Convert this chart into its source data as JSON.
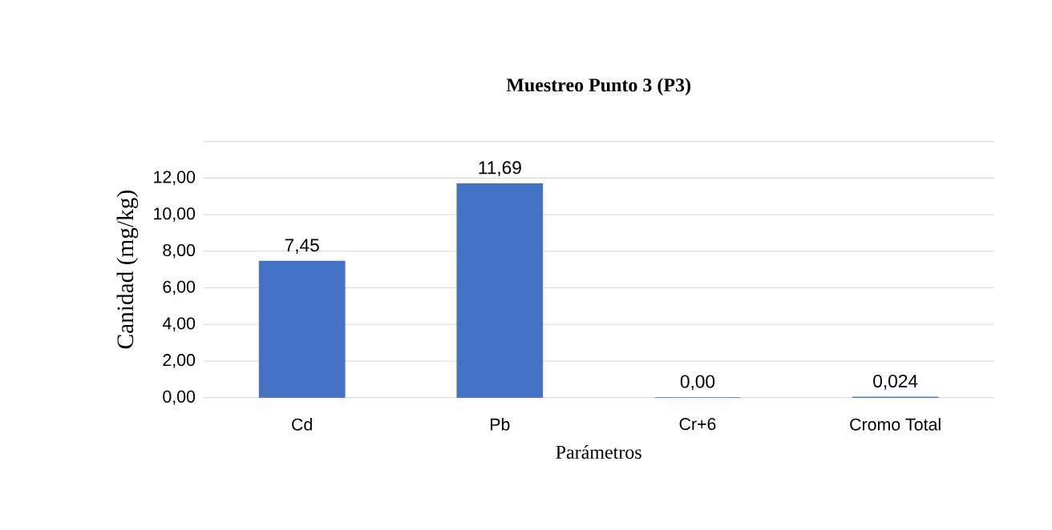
{
  "chart_data": {
    "type": "bar",
    "title": "Muestreo Punto 3 (P3)",
    "xlabel": "Parámetros",
    "ylabel": "Canidad (mg/kg)",
    "categories": [
      "Cd",
      "Pb",
      "Cr+6",
      "Cromo Total"
    ],
    "values": [
      7.45,
      11.69,
      0.0,
      0.024
    ],
    "value_labels": [
      "7,45",
      "11,69",
      "0,00",
      "0,024"
    ],
    "color": "#4472c4",
    "ylim": [
      0,
      14
    ],
    "yticks": [
      {
        "value": 0,
        "label": "0,00"
      },
      {
        "value": 2,
        "label": "2,00"
      },
      {
        "value": 4,
        "label": "4,00"
      },
      {
        "value": 6,
        "label": "6,00"
      },
      {
        "value": 8,
        "label": "8,00"
      },
      {
        "value": 10,
        "label": "10,00"
      },
      {
        "value": 12,
        "label": "12,00"
      },
      {
        "value": 14,
        "label": null
      }
    ],
    "grid": "y"
  }
}
